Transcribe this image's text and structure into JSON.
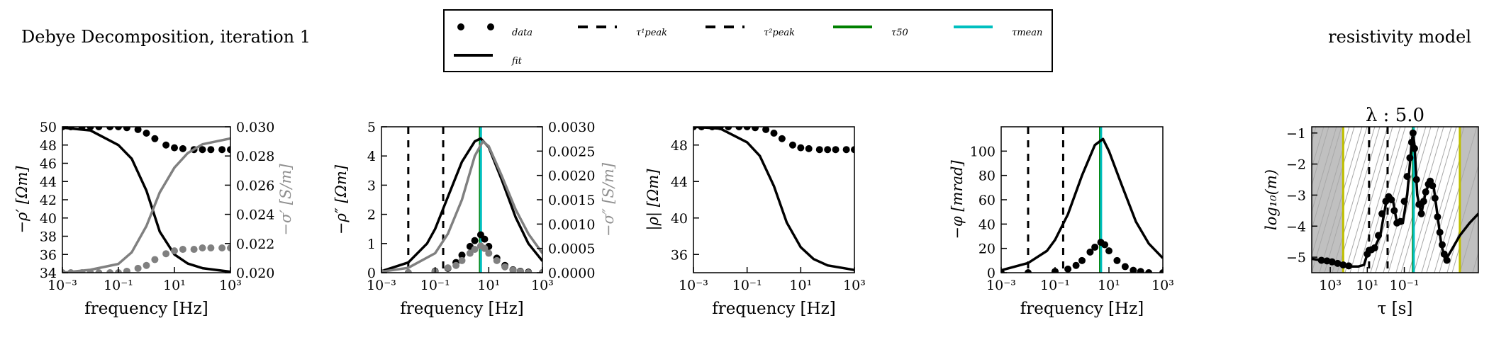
{
  "header": {
    "left_title": "Debye Decomposition, iteration 1",
    "right_title": "resistivity model"
  },
  "legend": {
    "entries": [
      {
        "label": "data",
        "style": "dots"
      },
      {
        "label": "fit",
        "style": "solid"
      },
      {
        "label": "τ¹peak",
        "style": "dashed"
      },
      {
        "label": "τ²peak",
        "style": "dashed"
      },
      {
        "label": "τ50",
        "style": "green"
      },
      {
        "label": "τmean",
        "style": "cyan"
      }
    ]
  },
  "colors": {
    "fit": "#000000",
    "data": "#000000",
    "sigma": "#808080",
    "tau50": "#008000",
    "taumean": "#00bfbf",
    "band": "#c0c0c0",
    "yellow": "#bfbf00"
  },
  "chart_data": [
    {
      "type": "line",
      "xlabel": "frequency [Hz]",
      "ylabel": "−ρ′ [Ωm]",
      "y2label": "−σ′ [S/m]",
      "xscale": "log",
      "xlim": [
        0.001,
        1000
      ],
      "xticks": [
        "10⁻³",
        "10⁻¹",
        "10¹",
        "10³"
      ],
      "ylim": [
        34,
        50
      ],
      "yticks": [
        "34",
        "36",
        "38",
        "40",
        "42",
        "44",
        "46",
        "48",
        "50"
      ],
      "y2lim": [
        0.02,
        0.03
      ],
      "y2ticks": [
        "0.020",
        "0.022",
        "0.024",
        "0.026",
        "0.028",
        "0.030"
      ],
      "series": [
        {
          "role": "rho_fit",
          "axis": "left",
          "color": "#000000",
          "x": [
            0.001,
            0.01,
            0.1,
            0.3,
            1,
            3,
            10,
            30,
            100,
            1000
          ],
          "y": [
            49.9,
            49.6,
            48.0,
            46.5,
            43.0,
            38.5,
            36.0,
            35.0,
            34.5,
            34.1
          ]
        },
        {
          "role": "rho_data",
          "axis": "left",
          "color": "#000000",
          "x": [
            0.001,
            0.002,
            0.005,
            0.01,
            0.02,
            0.05,
            0.1,
            0.2,
            0.5,
            1,
            2,
            5,
            10,
            20,
            50,
            100,
            200,
            500,
            1000
          ],
          "y": [
            50,
            50,
            50,
            50,
            50,
            50,
            50,
            49.9,
            49.7,
            49.3,
            48.7,
            48.0,
            47.7,
            47.6,
            47.5,
            47.5,
            47.5,
            47.5,
            47.5
          ]
        },
        {
          "role": "sigma_fit",
          "axis": "right",
          "color": "#808080",
          "x": [
            0.001,
            0.01,
            0.1,
            0.3,
            1,
            3,
            10,
            30,
            100,
            1000
          ],
          "y": [
            0.02,
            0.0202,
            0.0206,
            0.0214,
            0.0232,
            0.0255,
            0.0272,
            0.0282,
            0.0288,
            0.0292
          ]
        },
        {
          "role": "sigma_data",
          "axis": "right",
          "color": "#808080",
          "x": [
            0.001,
            0.002,
            0.005,
            0.01,
            0.02,
            0.05,
            0.1,
            0.2,
            0.5,
            1,
            2,
            5,
            10,
            20,
            50,
            100,
            200,
            500,
            1000
          ],
          "y": [
            0.02,
            0.02,
            0.02,
            0.02,
            0.02,
            0.02,
            0.02,
            0.0201,
            0.0203,
            0.0205,
            0.0209,
            0.0213,
            0.0215,
            0.0216,
            0.0216,
            0.0217,
            0.0217,
            0.0217,
            0.0217
          ]
        }
      ]
    },
    {
      "type": "line",
      "xlabel": "frequency [Hz]",
      "ylabel": "−ρ″ [Ωm]",
      "y2label": "−σ″ [S/m]",
      "xscale": "log",
      "xlim": [
        0.001,
        1000
      ],
      "xticks": [
        "10⁻³",
        "10⁻¹",
        "10¹",
        "10³"
      ],
      "ylim": [
        0,
        5
      ],
      "yticks": [
        "0",
        "1",
        "2",
        "3",
        "4",
        "5"
      ],
      "y2lim": [
        0,
        0.003
      ],
      "y2ticks": [
        "0.0000",
        "0.0005",
        "0.0010",
        "0.0015",
        "0.0020",
        "0.0025",
        "0.0030"
      ],
      "vlines": [
        {
          "x": 0.01,
          "style": "dashed"
        },
        {
          "x": 0.2,
          "style": "dashed"
        },
        {
          "x": 4.7,
          "style": "green"
        },
        {
          "x": 5.1,
          "style": "cyan"
        }
      ],
      "series": [
        {
          "role": "rho_fit",
          "axis": "left",
          "color": "#000000",
          "x": [
            0.001,
            0.01,
            0.05,
            0.1,
            0.3,
            1,
            3,
            5,
            10,
            30,
            100,
            300,
            1000
          ],
          "y": [
            0.05,
            0.35,
            1.0,
            1.5,
            2.6,
            3.8,
            4.5,
            4.6,
            4.3,
            3.2,
            1.9,
            1.0,
            0.4
          ]
        },
        {
          "role": "rho_data",
          "axis": "left",
          "color": "#000000",
          "x": [
            0.001,
            0.01,
            0.1,
            0.3,
            0.6,
            1,
            2,
            3,
            5,
            7,
            10,
            20,
            40,
            80,
            150,
            300,
            1000
          ],
          "y": [
            0,
            0,
            0.05,
            0.15,
            0.35,
            0.6,
            0.9,
            1.1,
            1.3,
            1.15,
            0.9,
            0.5,
            0.25,
            0.1,
            0.05,
            0.02,
            0
          ]
        },
        {
          "role": "sigma_fit",
          "axis": "right",
          "color": "#808080",
          "x": [
            0.001,
            0.01,
            0.1,
            0.3,
            1,
            3,
            6,
            10,
            30,
            100,
            300,
            1000
          ],
          "y": [
            2e-05,
            0.0001,
            0.0004,
            0.0008,
            0.0015,
            0.0024,
            0.0027,
            0.0026,
            0.002,
            0.0013,
            0.0008,
            0.0004
          ]
        },
        {
          "role": "sigma_data",
          "axis": "right",
          "color": "#808080",
          "x": [
            0.001,
            0.01,
            0.1,
            0.3,
            0.6,
            1,
            2,
            3,
            5,
            7,
            10,
            20,
            40,
            80,
            150,
            300,
            1000
          ],
          "y": [
            0,
            0,
            2e-05,
            0.0001,
            0.00015,
            0.00025,
            0.0004,
            0.00048,
            0.00055,
            0.0005,
            0.0004,
            0.00025,
            0.00012,
            5e-05,
            2e-05,
            0,
            0
          ]
        }
      ]
    },
    {
      "type": "line",
      "xlabel": "frequency [Hz]",
      "ylabel": "|ρ| [Ωm]",
      "xscale": "log",
      "xlim": [
        0.001,
        1000
      ],
      "xticks": [
        "10⁻³",
        "10⁻¹",
        "10¹",
        "10³"
      ],
      "ylim": [
        34,
        50
      ],
      "yticks": [
        "36",
        "40",
        "44",
        "48"
      ],
      "series": [
        {
          "role": "rho_fit",
          "axis": "left",
          "color": "#000000",
          "x": [
            0.001,
            0.01,
            0.1,
            0.3,
            1,
            3,
            10,
            30,
            100,
            1000
          ],
          "y": [
            50,
            49.8,
            48.3,
            46.8,
            43.5,
            39.5,
            36.8,
            35.5,
            34.8,
            34.3
          ]
        },
        {
          "role": "rho_data",
          "axis": "left",
          "color": "#000000",
          "x": [
            0.001,
            0.002,
            0.005,
            0.01,
            0.02,
            0.05,
            0.1,
            0.2,
            0.5,
            1,
            2,
            5,
            10,
            20,
            50,
            100,
            200,
            500,
            1000
          ],
          "y": [
            50,
            50,
            50,
            50,
            50,
            50,
            50,
            49.9,
            49.7,
            49.3,
            48.7,
            48.0,
            47.7,
            47.6,
            47.5,
            47.5,
            47.5,
            47.5,
            47.5
          ]
        }
      ]
    },
    {
      "type": "line",
      "xlabel": "frequency [Hz]",
      "ylabel": "−φ [mrad]",
      "xscale": "log",
      "xlim": [
        0.001,
        1000
      ],
      "xticks": [
        "10⁻³",
        "10⁻¹",
        "10¹",
        "10³"
      ],
      "ylim": [
        0,
        120
      ],
      "yticks": [
        "0",
        "20",
        "40",
        "60",
        "80",
        "100"
      ],
      "vlines": [
        {
          "x": 0.01,
          "style": "dashed"
        },
        {
          "x": 0.2,
          "style": "dashed"
        },
        {
          "x": 4.7,
          "style": "green"
        },
        {
          "x": 5.1,
          "style": "cyan"
        }
      ],
      "series": [
        {
          "role": "phi_fit",
          "axis": "left",
          "color": "#000000",
          "x": [
            0.001,
            0.01,
            0.05,
            0.1,
            0.3,
            1,
            3,
            6,
            10,
            30,
            100,
            300,
            1000
          ],
          "y": [
            2,
            8,
            18,
            27,
            48,
            80,
            105,
            110,
            100,
            72,
            42,
            24,
            12
          ]
        },
        {
          "role": "phi_data",
          "axis": "left",
          "color": "#000000",
          "x": [
            0.001,
            0.01,
            0.1,
            0.3,
            0.6,
            1,
            2,
            3,
            5,
            7,
            10,
            20,
            40,
            80,
            150,
            300,
            1000
          ],
          "y": [
            0,
            0,
            1,
            3,
            6,
            10,
            17,
            21,
            25,
            23,
            18,
            10,
            5,
            2,
            1,
            0,
            0
          ]
        }
      ]
    },
    {
      "type": "line",
      "title": "λ : 5.0",
      "xlabel": "τ [s]",
      "ylabel": "log₁₀(m)",
      "xscale": "log",
      "xdir": "decreasing",
      "xlim": [
        10000,
        1e-05
      ],
      "xticks": [
        "10³",
        "10¹",
        "10⁻¹"
      ],
      "ylim": [
        -5.5,
        -0.8
      ],
      "yticks": [
        "−5",
        "−4",
        "−3",
        "−2",
        "−1"
      ],
      "bands": [
        {
          "from": 10000,
          "to": 200
        },
        {
          "from": 0.0001,
          "to": 1e-05
        }
      ],
      "vlines": [
        {
          "x": 200,
          "style": "yellow"
        },
        {
          "x": 0.0001,
          "style": "yellow"
        },
        {
          "x": 8,
          "style": "dashed"
        },
        {
          "x": 0.8,
          "style": "dashed"
        },
        {
          "x": 0.034,
          "style": "green"
        },
        {
          "x": 0.031,
          "style": "cyan"
        }
      ],
      "series": [
        {
          "role": "m_fit",
          "axis": "left",
          "color": "#000000",
          "x": [
            10000,
            3000,
            1000,
            300,
            100,
            30,
            15,
            10,
            9,
            7,
            4,
            2,
            1,
            0.6,
            0.4,
            0.25,
            0.12,
            0.07,
            0.05,
            0.04,
            0.034,
            0.028,
            0.02,
            0.012,
            0.007,
            0.004,
            0.0025,
            0.0015,
            0.001,
            0.0006,
            0.0003,
            0.0001,
            3e-05,
            1e-05
          ],
          "y": [
            -5.05,
            -5.1,
            -5.15,
            -5.25,
            -5.3,
            -5.3,
            -5.25,
            -4.9,
            -4.75,
            -4.75,
            -4.7,
            -4.3,
            -3.3,
            -3.05,
            -3.2,
            -3.9,
            -3.9,
            -3.0,
            -2.0,
            -1.3,
            -1.0,
            -1.4,
            -3.0,
            -3.6,
            -2.9,
            -2.55,
            -2.8,
            -3.8,
            -4.6,
            -5.1,
            -4.8,
            -4.3,
            -3.9,
            -3.6
          ]
        },
        {
          "role": "m_data",
          "axis": "left",
          "color": "#000000",
          "x": [
            3000,
            1500,
            800,
            400,
            200,
            100,
            10,
            8,
            6,
            4,
            2.5,
            1.6,
            1,
            0.7,
            0.5,
            0.35,
            0.25,
            0.16,
            0.1,
            0.07,
            0.05,
            0.04,
            0.034,
            0.028,
            0.022,
            0.016,
            0.012,
            0.009,
            0.007,
            0.005,
            0.004,
            0.003,
            0.0022,
            0.0016,
            0.0012,
            0.0009,
            0.0007,
            0.0005
          ],
          "y": [
            -5.1,
            -5.12,
            -5.15,
            -5.2,
            -5.25,
            -5.28,
            -4.9,
            -4.78,
            -4.76,
            -4.7,
            -4.3,
            -3.6,
            -3.2,
            -3.05,
            -3.15,
            -3.5,
            -3.9,
            -3.85,
            -3.2,
            -2.4,
            -1.8,
            -1.3,
            -1.0,
            -1.5,
            -2.5,
            -3.3,
            -3.6,
            -3.2,
            -2.9,
            -2.65,
            -2.55,
            -2.7,
            -3.1,
            -3.7,
            -4.2,
            -4.6,
            -4.9,
            -5.1
          ]
        }
      ]
    }
  ]
}
